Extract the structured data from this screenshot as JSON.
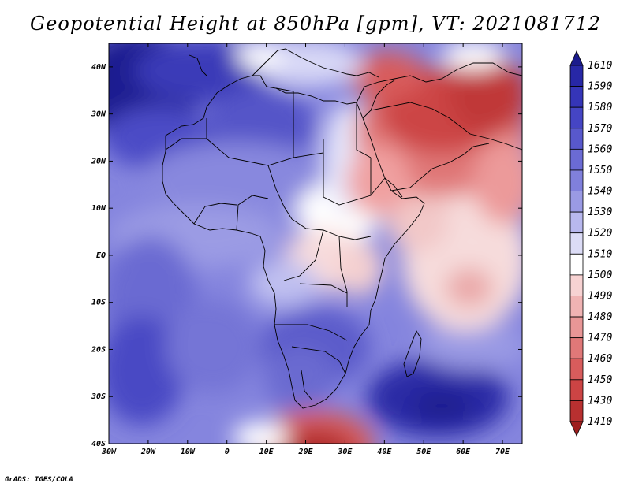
{
  "title": "Geopotential Height at 850hPa [gpm], VT: 2021081712",
  "credit": "GrADS: IGES/COLA",
  "map": {
    "region": "Africa and Middle East",
    "lon_range": [
      -30,
      75
    ],
    "lat_range": [
      -40,
      45
    ],
    "lon_ticks": [
      "30W",
      "20W",
      "10W",
      "0",
      "10E",
      "20E",
      "30E",
      "40E",
      "50E",
      "60E",
      "70E"
    ],
    "lat_ticks": [
      "40N",
      "30N",
      "20N",
      "10N",
      "EQ",
      "10S",
      "20S",
      "30S",
      "40S"
    ]
  },
  "colorbar": {
    "levels": [
      "1610",
      "1590",
      "1580",
      "1570",
      "1560",
      "1550",
      "1540",
      "1530",
      "1520",
      "1510",
      "1500",
      "1490",
      "1480",
      "1470",
      "1460",
      "1450",
      "1430",
      "1410"
    ],
    "colors": [
      "#1b1b8c",
      "#2727a6",
      "#3535b8",
      "#4545c4",
      "#5858cc",
      "#6b6bd4",
      "#8080dc",
      "#9a9ae4",
      "#b8b8ee",
      "#dcdcf6",
      "#ffffff",
      "#f7d2d2",
      "#f0b3b3",
      "#e89696",
      "#e07878",
      "#d85c5c",
      "#cc4444",
      "#b83030",
      "#9e1e1e"
    ]
  },
  "colors": {
    "high_blue": "#1b1b8c",
    "mid_white": "#ffffff",
    "low_red": "#9e1e1e"
  }
}
